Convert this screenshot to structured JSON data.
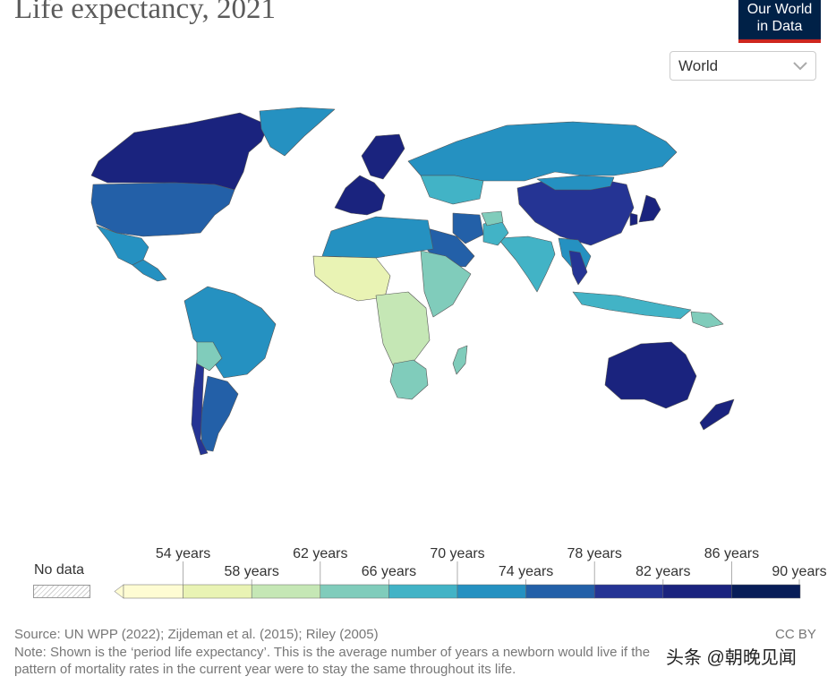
{
  "title": "Life expectancy, 2021",
  "logo": {
    "line1": "Our World",
    "line2": "in Data"
  },
  "selector": {
    "value": "World",
    "icon": "chevron-down-icon"
  },
  "legend": {
    "no_data_label": "No data",
    "colors": [
      "#fefcd3",
      "#e9f3b4",
      "#c5e7b5",
      "#80ccbb",
      "#42b3c6",
      "#2591c1",
      "#2360a8",
      "#253494",
      "#1a237e",
      "#081d58"
    ],
    "upper_labels": [
      "54 years",
      "62 years",
      "70 years",
      "78 years",
      "86 years"
    ],
    "lower_labels": [
      "58 years",
      "66 years",
      "74 years",
      "82 years",
      "90 years"
    ]
  },
  "chart_data": {
    "type": "choropleth",
    "title": "Life expectancy, 2021",
    "unit": "years",
    "bins": [
      50,
      54,
      58,
      62,
      66,
      70,
      74,
      78,
      82,
      86,
      90
    ],
    "regions": [
      {
        "name": "Canada",
        "years": 82
      },
      {
        "name": "Greenland",
        "years": 72
      },
      {
        "name": "USA",
        "years": 76
      },
      {
        "name": "Mexico",
        "years": 70
      },
      {
        "name": "Central America",
        "years": 73
      },
      {
        "name": "Brazil",
        "years": 73
      },
      {
        "name": "Argentina",
        "years": 76
      },
      {
        "name": "Chile",
        "years": 79
      },
      {
        "name": "Bolivia",
        "years": 64
      },
      {
        "name": "Russia",
        "years": 70
      },
      {
        "name": "Kazakhstan",
        "years": 69
      },
      {
        "name": "Western Europe",
        "years": 82
      },
      {
        "name": "Scandinavia",
        "years": 83
      },
      {
        "name": "China",
        "years": 78
      },
      {
        "name": "Mongolia",
        "years": 71
      },
      {
        "name": "Japan",
        "years": 85
      },
      {
        "name": "South Korea",
        "years": 84
      },
      {
        "name": "India",
        "years": 67
      },
      {
        "name": "Pakistan",
        "years": 66
      },
      {
        "name": "Afghanistan",
        "years": 62
      },
      {
        "name": "Iran",
        "years": 74
      },
      {
        "name": "Saudi Arabia",
        "years": 77
      },
      {
        "name": "North Africa",
        "years": 71
      },
      {
        "name": "West Africa",
        "years": 55
      },
      {
        "name": "Central Africa",
        "years": 58
      },
      {
        "name": "East Africa",
        "years": 63
      },
      {
        "name": "Southern Africa",
        "years": 62
      },
      {
        "name": "Madagascar",
        "years": 64
      },
      {
        "name": "Southeast Asia",
        "years": 72
      },
      {
        "name": "Thailand",
        "years": 79
      },
      {
        "name": "Indonesia",
        "years": 68
      },
      {
        "name": "Papua New Guinea",
        "years": 65
      },
      {
        "name": "Australia",
        "years": 84
      },
      {
        "name": "New Zealand",
        "years": 82
      }
    ]
  },
  "footer": {
    "source": "Source: UN WPP (2022); Zijdeman et al. (2015); Riley (2005)",
    "note": "Note: Shown is the ‘period life expectancy’. This is the average number of years a newborn would live if the pattern of mortality rates in the current year were to stay the same throughout its life.",
    "license": "CC BY"
  },
  "watermark": "头条 @朝晚见闻"
}
